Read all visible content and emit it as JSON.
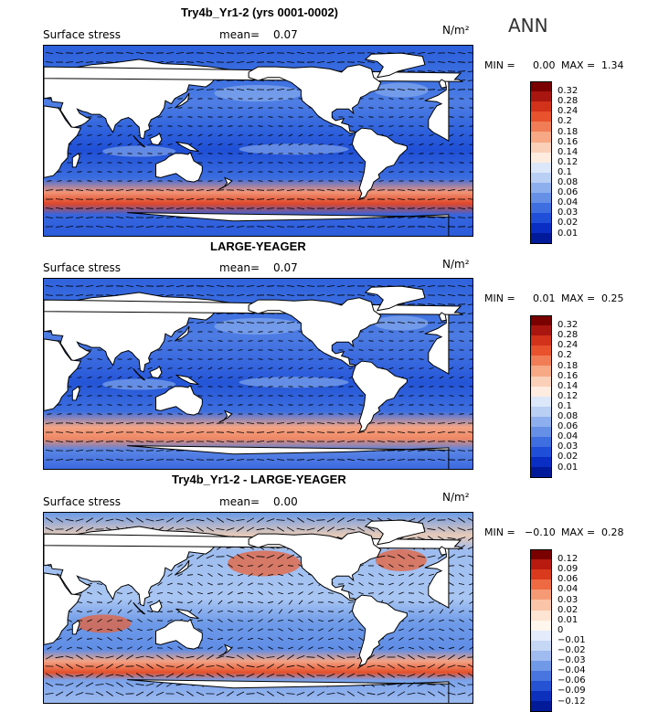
{
  "corner_label": "ANN",
  "palette_top": [
    "#7a0000",
    "#a8160f",
    "#d2321a",
    "#e8522d",
    "#f17d56",
    "#f7a884",
    "#fad0b9",
    "#fdecdf",
    "#dce8fa",
    "#b9cff4",
    "#8eafee",
    "#6690e6",
    "#3f6ee0",
    "#1f4fd8",
    "#0a2ec4",
    "#001a99"
  ],
  "panels": [
    {
      "title": "Try4b_Yr1-2 (yrs 0001-0002)",
      "field_label": "Surface stress",
      "mean_label": "mean=",
      "mean_value": "0.07",
      "units": "N/m²",
      "min_label": "MIN =",
      "min_value": "0.00",
      "max_label": "MAX =",
      "max_value": "1.34",
      "colorbar_labels": [
        "0.32",
        "0.28",
        "0.24",
        "0.2",
        "0.18",
        "0.16",
        "0.14",
        "0.12",
        "0.1",
        "0.08",
        "0.06",
        "0.04",
        "0.03",
        "0.02",
        "0.01"
      ]
    },
    {
      "title": "LARGE-YEAGER",
      "field_label": "Surface stress",
      "mean_label": "mean=",
      "mean_value": "0.07",
      "units": "N/m²",
      "min_label": "MIN =",
      "min_value": "0.01",
      "max_label": "MAX =",
      "max_value": "0.25",
      "colorbar_labels": [
        "0.32",
        "0.28",
        "0.24",
        "0.2",
        "0.18",
        "0.16",
        "0.14",
        "0.12",
        "0.1",
        "0.08",
        "0.06",
        "0.04",
        "0.03",
        "0.02",
        "0.01"
      ]
    },
    {
      "title": "Try4b_Yr1-2 - LARGE-YEAGER",
      "field_label": "Surface stress",
      "mean_label": "mean=",
      "mean_value": "0.00",
      "units": "N/m²",
      "min_label": "MIN =",
      "min_value": "−0.10",
      "max_label": "MAX =",
      "max_value": "0.28",
      "colorbar_labels": [
        "0.12",
        "0.09",
        "0.06",
        "0.04",
        "0.03",
        "0.02",
        "0.01",
        "0",
        "−0.01",
        "−0.02",
        "−0.03",
        "−0.04",
        "−0.06",
        "−0.09",
        "−0.12"
      ]
    }
  ]
}
